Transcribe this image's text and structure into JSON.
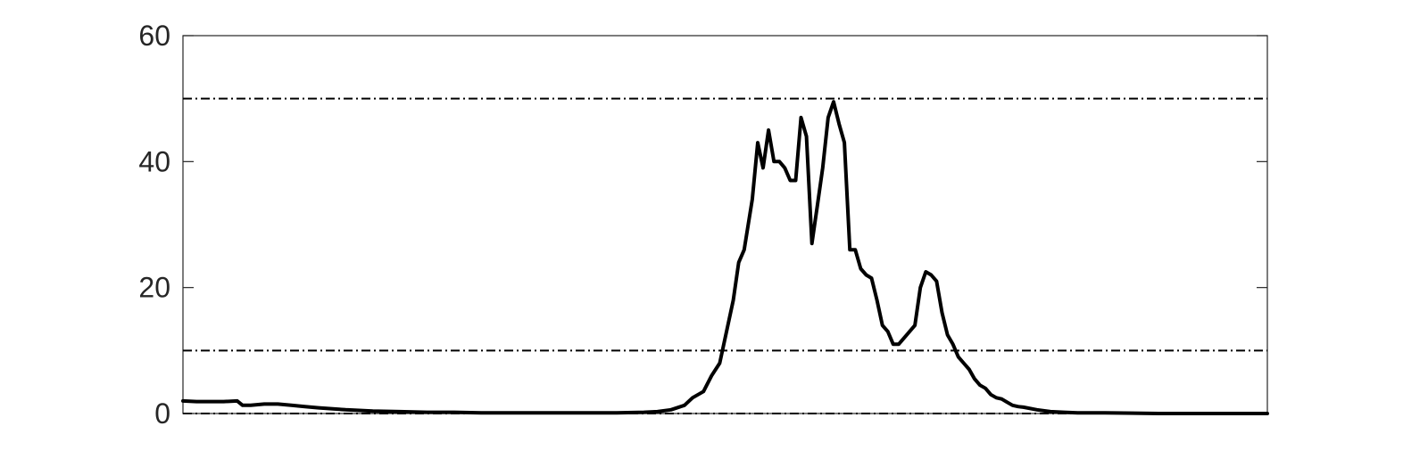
{
  "chart_data": {
    "type": "line",
    "title": "",
    "xlabel": "",
    "ylabel": "",
    "xlim": [
      0,
      400
    ],
    "ylim": [
      0,
      60
    ],
    "yticks": [
      0,
      20,
      40,
      60
    ],
    "ytick_labels": [
      "0",
      "20",
      "40",
      "60"
    ],
    "xticks": [],
    "grid": false,
    "legend": "none",
    "reference_lines": [
      {
        "y": 50,
        "style": "dash-dot",
        "color": "#000000"
      },
      {
        "y": 10,
        "style": "dash-dot",
        "color": "#000000"
      },
      {
        "y": 0,
        "style": "dash-dot",
        "color": "#000000"
      }
    ],
    "series": [
      {
        "color": "#000000",
        "x": [
          0,
          5,
          10,
          15,
          20,
          22,
          25,
          30,
          35,
          40,
          45,
          50,
          60,
          70,
          80,
          90,
          100,
          110,
          120,
          130,
          140,
          150,
          160,
          170,
          175,
          180,
          185,
          188,
          192,
          195,
          198,
          200,
          203,
          205,
          207,
          210,
          212,
          214,
          216,
          218,
          220,
          222,
          224,
          226,
          228,
          230,
          232,
          234,
          236,
          238,
          240,
          242,
          244,
          246,
          248,
          250,
          252,
          254,
          256,
          258,
          260,
          262,
          264,
          266,
          268,
          270,
          272,
          274,
          276,
          278,
          280,
          282,
          284,
          286,
          288,
          290,
          292,
          294,
          296,
          298,
          300,
          302,
          304,
          306,
          308,
          310,
          315,
          320,
          325,
          330,
          340,
          360,
          380,
          400
        ],
        "y": [
          2,
          1.9,
          1.9,
          1.9,
          2,
          1.3,
          1.3,
          1.5,
          1.5,
          1.3,
          1.1,
          0.9,
          0.6,
          0.4,
          0.3,
          0.2,
          0.2,
          0.1,
          0.1,
          0.1,
          0.1,
          0.1,
          0.1,
          0.2,
          0.3,
          0.6,
          1.3,
          2.5,
          3.5,
          6,
          8,
          12,
          18,
          24,
          26,
          34,
          43,
          39,
          45,
          40,
          40,
          39,
          37,
          37,
          47,
          44,
          27,
          33,
          39,
          47,
          49.5,
          46,
          43,
          26,
          26,
          23,
          22,
          21.5,
          18,
          14,
          13,
          11,
          11,
          12,
          13,
          14,
          20,
          22.5,
          22,
          21,
          16,
          12.5,
          11,
          9,
          8,
          7,
          5.5,
          4.5,
          4,
          3,
          2.5,
          2.3,
          1.8,
          1.3,
          1.1,
          1,
          0.6,
          0.3,
          0.2,
          0.1,
          0.1,
          0,
          0,
          0
        ]
      }
    ]
  }
}
